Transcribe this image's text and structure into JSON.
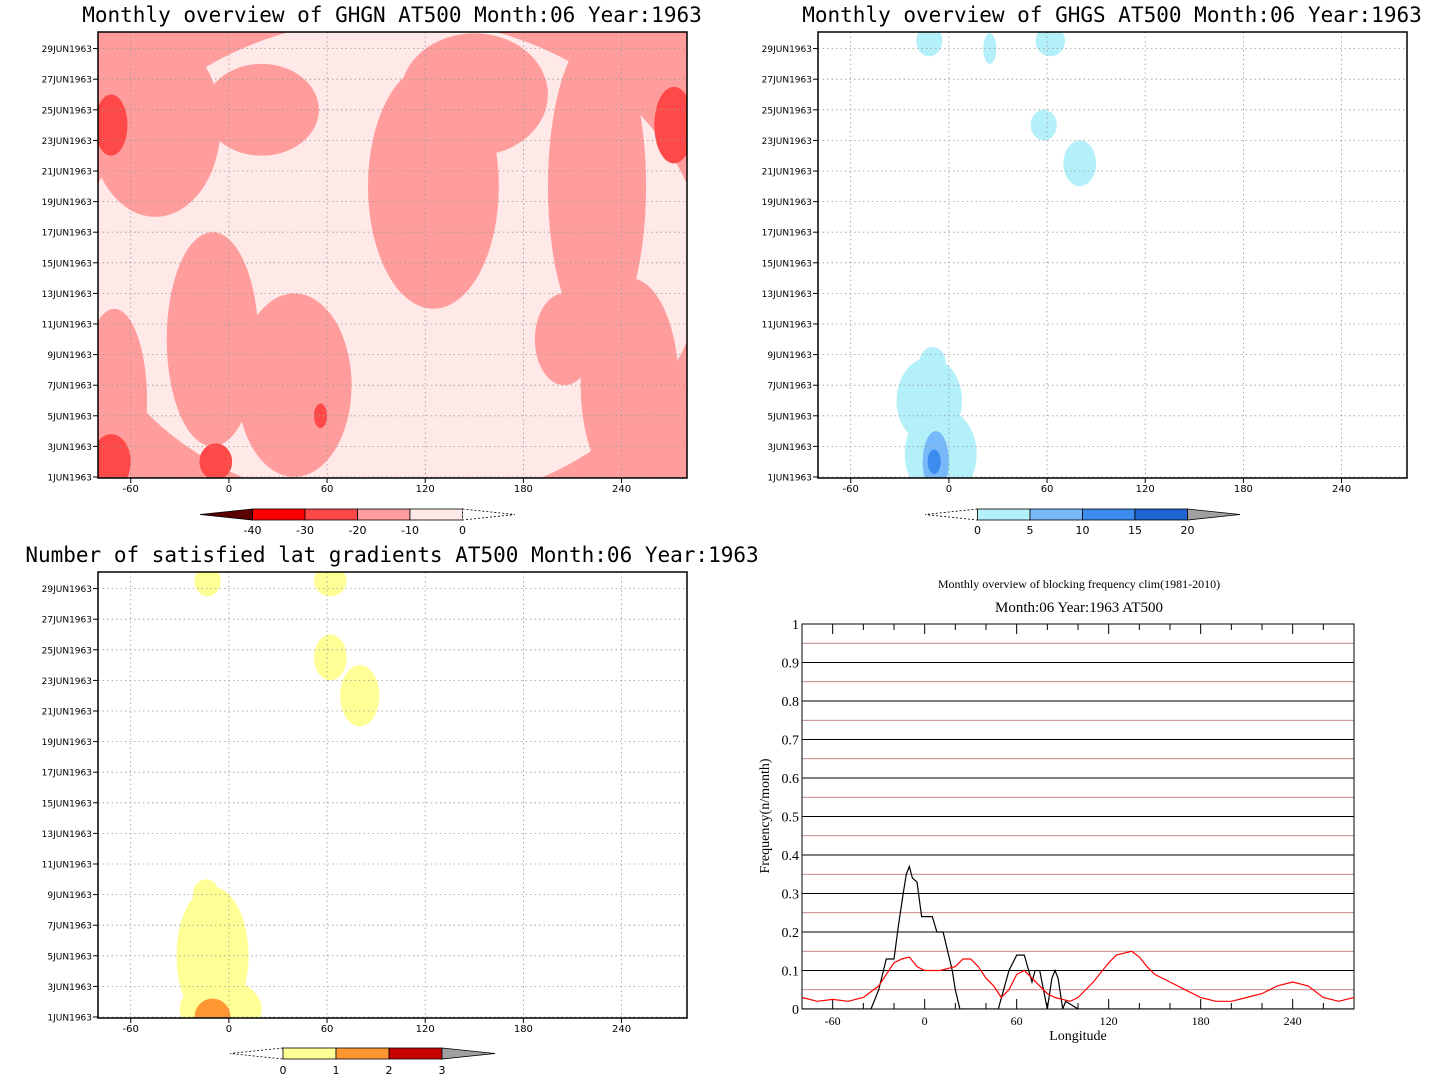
{
  "panels": [
    {
      "id": "ghgn",
      "title": "Monthly overview of GHGN AT500 Month:06 Year:1963",
      "y_labels": [
        "1JUN1963",
        "3JUN1963",
        "5JUN1963",
        "7JUN1963",
        "9JUN1963",
        "11JUN1963",
        "13JUN1963",
        "15JUN1963",
        "17JUN1963",
        "19JUN1963",
        "21JUN1963",
        "23JUN1963",
        "25JUN1963",
        "27JUN1963",
        "29JUN1963"
      ],
      "x_ticks": [
        -60,
        0,
        60,
        120,
        180,
        240
      ],
      "xlim": [
        -80,
        280
      ],
      "colorbar": {
        "labels": [
          "-40",
          "-30",
          "-20",
          "-10",
          "0"
        ],
        "colors": [
          "#5a0000",
          "#ff0000",
          "#ff4848",
          "#ff9d9d",
          "#ffe8e8",
          "#ffffff"
        ]
      },
      "blobs": [
        {
          "c": "#ffe8e8",
          "cx": 100,
          "cy": 15,
          "rx": 190,
          "ry": 16
        },
        {
          "c": "#ff9d9d",
          "cx": -45,
          "cy": 24,
          "rx": 40,
          "ry": 6
        },
        {
          "c": "#ff9d9d",
          "cx": 20,
          "cy": 25,
          "rx": 35,
          "ry": 3
        },
        {
          "c": "#ff9d9d",
          "cx": -10,
          "cy": 10,
          "rx": 28,
          "ry": 7
        },
        {
          "c": "#ff9d9d",
          "cx": 40,
          "cy": 7,
          "rx": 35,
          "ry": 6
        },
        {
          "c": "#ff9d9d",
          "cx": 125,
          "cy": 20,
          "rx": 40,
          "ry": 8
        },
        {
          "c": "#ff9d9d",
          "cx": 150,
          "cy": 26,
          "rx": 45,
          "ry": 4
        },
        {
          "c": "#ff9d9d",
          "cx": 225,
          "cy": 20,
          "rx": 30,
          "ry": 10
        },
        {
          "c": "#ff9d9d",
          "cx": 245,
          "cy": 7,
          "rx": 30,
          "ry": 7
        },
        {
          "c": "#ff9d9d",
          "cx": -70,
          "cy": 6,
          "rx": 20,
          "ry": 6
        },
        {
          "c": "#ff9d9d",
          "cx": 205,
          "cy": 10,
          "rx": 18,
          "ry": 3
        },
        {
          "c": "#ff4848",
          "cx": -72,
          "cy": 24,
          "rx": 10,
          "ry": 2
        },
        {
          "c": "#ff4848",
          "cx": 272,
          "cy": 24,
          "rx": 12,
          "ry": 2.5
        },
        {
          "c": "#ff4848",
          "cx": -72,
          "cy": 2,
          "rx": 12,
          "ry": 1.8
        },
        {
          "c": "#ff4848",
          "cx": -8,
          "cy": 2,
          "rx": 10,
          "ry": 1.2
        },
        {
          "c": "#ff4848",
          "cx": 56,
          "cy": 5,
          "rx": 4,
          "ry": 0.8
        }
      ]
    },
    {
      "id": "ghgs",
      "title": "Monthly overview of GHGS AT500 Month:06 Year:1963",
      "y_labels": [
        "1JUN1963",
        "3JUN1963",
        "5JUN1963",
        "7JUN1963",
        "9JUN1963",
        "11JUN1963",
        "13JUN1963",
        "15JUN1963",
        "17JUN1963",
        "19JUN1963",
        "21JUN1963",
        "23JUN1963",
        "25JUN1963",
        "27JUN1963",
        "29JUN1963"
      ],
      "x_ticks": [
        -60,
        0,
        60,
        120,
        180,
        240
      ],
      "xlim": [
        -80,
        280
      ],
      "colorbar": {
        "labels": [
          "0",
          "5",
          "10",
          "15",
          "20"
        ],
        "colors": [
          "#ffffff",
          "#b4f0fa",
          "#78b9fa",
          "#3c8cf0",
          "#1e64d2",
          "#a0a0a0"
        ]
      },
      "blobs": [
        {
          "c": "#b4f0fa",
          "cx": -12,
          "cy": 6,
          "rx": 20,
          "ry": 2.8
        },
        {
          "c": "#b4f0fa",
          "cx": -5,
          "cy": 2.5,
          "rx": 22,
          "ry": 3
        },
        {
          "c": "#b4f0fa",
          "cx": -10,
          "cy": 8.5,
          "rx": 8,
          "ry": 1
        },
        {
          "c": "#78b9fa",
          "cx": -8,
          "cy": 2,
          "rx": 8,
          "ry": 2
        },
        {
          "c": "#3c8cf0",
          "cx": -9,
          "cy": 2,
          "rx": 4,
          "ry": 0.8
        },
        {
          "c": "#b4f0fa",
          "cx": -12,
          "cy": 29.5,
          "rx": 8,
          "ry": 1
        },
        {
          "c": "#b4f0fa",
          "cx": 25,
          "cy": 29,
          "rx": 4,
          "ry": 1
        },
        {
          "c": "#b4f0fa",
          "cx": 62,
          "cy": 29.5,
          "rx": 9,
          "ry": 1
        },
        {
          "c": "#b4f0fa",
          "cx": 58,
          "cy": 24,
          "rx": 8,
          "ry": 1
        },
        {
          "c": "#b4f0fa",
          "cx": 80,
          "cy": 21.5,
          "rx": 10,
          "ry": 1.5
        }
      ]
    },
    {
      "id": "grad",
      "title": "Number of satisfied lat gradients AT500 Month:06 Year:1963",
      "y_labels": [
        "1JUN1963",
        "3JUN1963",
        "5JUN1963",
        "7JUN1963",
        "9JUN1963",
        "11JUN1963",
        "13JUN1963",
        "15JUN1963",
        "17JUN1963",
        "19JUN1963",
        "21JUN1963",
        "23JUN1963",
        "25JUN1963",
        "27JUN1963",
        "29JUN1963"
      ],
      "x_ticks": [
        -60,
        0,
        60,
        120,
        180,
        240
      ],
      "xlim": [
        -80,
        280
      ],
      "colorbar": {
        "labels": [
          "0",
          "1",
          "2",
          "3"
        ],
        "colors": [
          "#ffffff",
          "#ffff96",
          "#ff9632",
          "#c80000",
          "#a0a0a0"
        ]
      },
      "blobs": [
        {
          "c": "#ffff96",
          "cx": -10,
          "cy": 5,
          "rx": 22,
          "ry": 4.5
        },
        {
          "c": "#ffff96",
          "cx": -5,
          "cy": 1.5,
          "rx": 25,
          "ry": 2
        },
        {
          "c": "#ffff96",
          "cx": -14,
          "cy": 9,
          "rx": 8,
          "ry": 1
        },
        {
          "c": "#ff9632",
          "cx": -10,
          "cy": 1,
          "rx": 11,
          "ry": 1.2
        },
        {
          "c": "#ffff96",
          "cx": -13,
          "cy": 29.5,
          "rx": 8,
          "ry": 1
        },
        {
          "c": "#ffff96",
          "cx": 62,
          "cy": 29.5,
          "rx": 10,
          "ry": 1
        },
        {
          "c": "#ffff96",
          "cx": 62,
          "cy": 24.5,
          "rx": 10,
          "ry": 1.5
        },
        {
          "c": "#ffff96",
          "cx": 80,
          "cy": 22,
          "rx": 12,
          "ry": 2
        }
      ]
    }
  ],
  "chart_data": {
    "type": "line",
    "title": "Monthly overview of blocking frequency clim(1981-2010)",
    "subtitle": "Month:06 Year:1963  AT500",
    "xlabel": "Longitude",
    "ylabel": "Frequency(n/month)",
    "xlim": [
      -80,
      280
    ],
    "ylim": [
      0,
      1
    ],
    "x_ticks": [
      -60,
      0,
      60,
      120,
      180,
      240
    ],
    "y_ticks": [
      0,
      0.1,
      0.2,
      0.3,
      0.4,
      0.5,
      0.6,
      0.7,
      0.8,
      0.9,
      1
    ],
    "y_tick_labels": [
      "0",
      "0.1",
      "0.2",
      "0.3",
      "0.4",
      "0.5",
      "0.6",
      "0.7",
      "0.8",
      "0.9",
      "1"
    ],
    "series": [
      {
        "color": "#000000",
        "x": [
          -80,
          -35,
          -30,
          -25,
          -20,
          -17,
          -14,
          -12,
          -10,
          -8,
          -5,
          -2,
          5,
          8,
          12,
          15,
          18,
          20,
          23,
          25,
          30,
          40,
          48,
          55,
          60,
          65,
          70,
          72,
          75,
          80,
          83,
          85,
          87,
          90,
          92,
          100,
          120,
          280
        ],
        "values": [
          0,
          0,
          0.05,
          0.13,
          0.13,
          0.22,
          0.3,
          0.35,
          0.37,
          0.34,
          0.33,
          0.24,
          0.24,
          0.2,
          0.2,
          0.15,
          0.1,
          0.05,
          0,
          0,
          0,
          0,
          0,
          0.1,
          0.14,
          0.14,
          0.07,
          0.1,
          0.1,
          0,
          0.08,
          0.1,
          0.08,
          0,
          0.02,
          0,
          0,
          0
        ]
      },
      {
        "color": "#ff0000",
        "x": [
          -80,
          -70,
          -60,
          -50,
          -40,
          -30,
          -25,
          -20,
          -15,
          -10,
          -5,
          0,
          10,
          20,
          25,
          30,
          35,
          40,
          45,
          50,
          55,
          60,
          65,
          70,
          75,
          80,
          85,
          90,
          95,
          100,
          110,
          120,
          125,
          130,
          135,
          140,
          145,
          150,
          160,
          170,
          180,
          190,
          200,
          210,
          220,
          230,
          240,
          250,
          260,
          270,
          280
        ],
        "values": [
          0.03,
          0.02,
          0.025,
          0.02,
          0.03,
          0.06,
          0.09,
          0.12,
          0.13,
          0.135,
          0.11,
          0.1,
          0.1,
          0.11,
          0.13,
          0.13,
          0.11,
          0.08,
          0.06,
          0.03,
          0.05,
          0.09,
          0.1,
          0.08,
          0.06,
          0.04,
          0.03,
          0.025,
          0.02,
          0.03,
          0.07,
          0.12,
          0.14,
          0.145,
          0.15,
          0.135,
          0.11,
          0.09,
          0.07,
          0.05,
          0.03,
          0.02,
          0.02,
          0.03,
          0.04,
          0.06,
          0.07,
          0.06,
          0.03,
          0.02,
          0.03
        ]
      }
    ]
  }
}
